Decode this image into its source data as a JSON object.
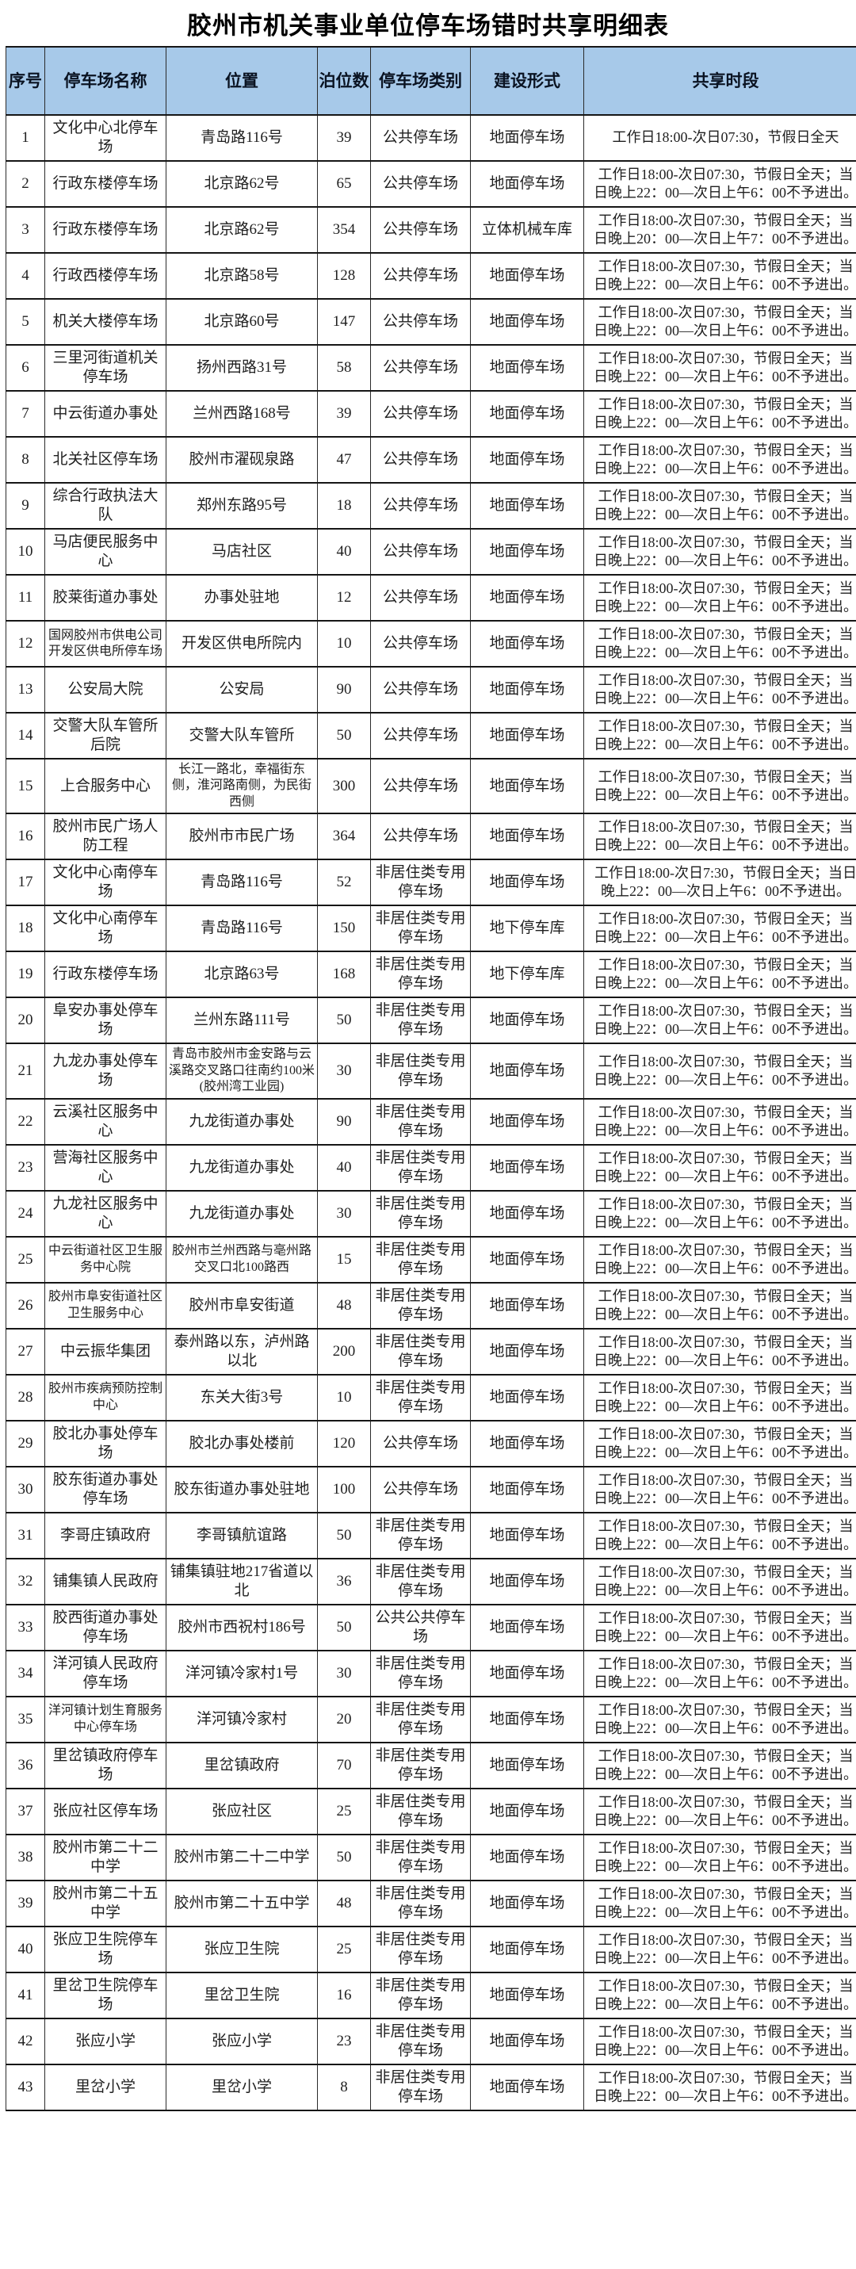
{
  "page": {
    "title": "胶州市机关事业单位停车场错时共享明细表"
  },
  "colors": {
    "header_bg": "#a7c9e9",
    "border": "#2b2b2b",
    "text": "#1f1f1f"
  },
  "table": {
    "columns": [
      "序号",
      "停车场名称",
      "位置",
      "泊位数",
      "停车场类别",
      "建设形式",
      "共享时段"
    ],
    "rows": [
      [
        "1",
        "文化中心北停车场",
        "青岛路116号",
        "39",
        "公共停车场",
        "地面停车场",
        "工作日18:00-次日07:30，节假日全天"
      ],
      [
        "2",
        "行政东楼停车场",
        "北京路62号",
        "65",
        "公共停车场",
        "地面停车场",
        "工作日18:00-次日07:30，节假日全天；当日晚上22：00—次日上午6：00不予进出。"
      ],
      [
        "3",
        "行政东楼停车场",
        "北京路62号",
        "354",
        "公共停车场",
        "立体机械车库",
        "工作日18:00-次日07:30，节假日全天；当日晚上20：00—次日上午7：00不予进出。"
      ],
      [
        "4",
        "行政西楼停车场",
        "北京路58号",
        "128",
        "公共停车场",
        "地面停车场",
        "工作日18:00-次日07:30，节假日全天；当日晚上22：00—次日上午6：00不予进出。"
      ],
      [
        "5",
        "机关大楼停车场",
        "北京路60号",
        "147",
        "公共停车场",
        "地面停车场",
        "工作日18:00-次日07:30，节假日全天；当日晚上22：00—次日上午6：00不予进出。"
      ],
      [
        "6",
        "三里河街道机关停车场",
        "扬州西路31号",
        "58",
        "公共停车场",
        "地面停车场",
        "工作日18:00-次日07:30，节假日全天；当日晚上22：00—次日上午6：00不予进出。"
      ],
      [
        "7",
        "中云街道办事处",
        "兰州西路168号",
        "39",
        "公共停车场",
        "地面停车场",
        "工作日18:00-次日07:30，节假日全天；当日晚上22：00—次日上午6：00不予进出。"
      ],
      [
        "8",
        "北关社区停车场",
        "胶州市濯砚泉路",
        "47",
        "公共停车场",
        "地面停车场",
        "工作日18:00-次日07:30，节假日全天；当日晚上22：00—次日上午6：00不予进出。"
      ],
      [
        "9",
        "综合行政执法大队",
        "郑州东路95号",
        "18",
        "公共停车场",
        "地面停车场",
        "工作日18:00-次日07:30，节假日全天；当日晚上22：00—次日上午6：00不予进出。"
      ],
      [
        "10",
        "马店便民服务中心",
        "马店社区",
        "40",
        "公共停车场",
        "地面停车场",
        "工作日18:00-次日07:30，节假日全天；当日晚上22：00—次日上午6：00不予进出。"
      ],
      [
        "11",
        "胶莱街道办事处",
        "办事处驻地",
        "12",
        "公共停车场",
        "地面停车场",
        "工作日18:00-次日07:30，节假日全天；当日晚上22：00—次日上午6：00不予进出。"
      ],
      [
        "12",
        "国网胶州市供电公司开发区供电所停车场",
        "开发区供电所院内",
        "10",
        "公共停车场",
        "地面停车场",
        "工作日18:00-次日07:30，节假日全天；当日晚上22：00—次日上午6：00不予进出。"
      ],
      [
        "13",
        "公安局大院",
        "公安局",
        "90",
        "公共停车场",
        "地面停车场",
        "工作日18:00-次日07:30，节假日全天；当日晚上22：00—次日上午6：00不予进出。"
      ],
      [
        "14",
        "交警大队车管所后院",
        "交警大队车管所",
        "50",
        "公共停车场",
        "地面停车场",
        "工作日18:00-次日07:30，节假日全天；当日晚上22：00—次日上午6：00不予进出。"
      ],
      [
        "15",
        "上合服务中心",
        "长江一路北，幸福街东侧，淮河路南侧，为民街西侧",
        "300",
        "公共停车场",
        "地面停车场",
        "工作日18:00-次日07:30，节假日全天；当日晚上22：00—次日上午6：00不予进出。"
      ],
      [
        "16",
        "胶州市民广场人防工程",
        "胶州市市民广场",
        "364",
        "公共停车场",
        "地面停车场",
        "工作日18:00-次日07:30，节假日全天；当日晚上22：00—次日上午6：00不予进出。"
      ],
      [
        "17",
        "文化中心南停车场",
        "青岛路116号",
        "52",
        "非居住类专用停车场",
        "地面停车场",
        "工作日18:00-次日7:30，节假日全天；当日晚上22：00—次日上午6：00不予进出。"
      ],
      [
        "18",
        "文化中心南停车场",
        "青岛路116号",
        "150",
        "非居住类专用停车场",
        "地下停车库",
        "工作日18:00-次日07:30，节假日全天；当日晚上22：00—次日上午6：00不予进出。"
      ],
      [
        "19",
        "行政东楼停车场",
        "北京路63号",
        "168",
        "非居住类专用停车场",
        "地下停车库",
        "工作日18:00-次日07:30，节假日全天；当日晚上22：00—次日上午6：00不予进出。"
      ],
      [
        "20",
        "阜安办事处停车场",
        "兰州东路111号",
        "50",
        "非居住类专用停车场",
        "地面停车场",
        "工作日18:00-次日07:30，节假日全天；当日晚上22：00—次日上午6：00不予进出。"
      ],
      [
        "21",
        "九龙办事处停车场",
        "青岛市胶州市金安路与云溪路交叉路口往南约100米(胶州湾工业园)",
        "30",
        "非居住类专用停车场",
        "地面停车场",
        "工作日18:00-次日07:30，节假日全天；当日晚上22：00—次日上午6：00不予进出。"
      ],
      [
        "22",
        "云溪社区服务中心",
        "九龙街道办事处",
        "90",
        "非居住类专用停车场",
        "地面停车场",
        "工作日18:00-次日07:30，节假日全天；当日晚上22：00—次日上午6：00不予进出。"
      ],
      [
        "23",
        "营海社区服务中心",
        "九龙街道办事处",
        "40",
        "非居住类专用停车场",
        "地面停车场",
        "工作日18:00-次日07:30，节假日全天；当日晚上22：00—次日上午6：00不予进出。"
      ],
      [
        "24",
        "九龙社区服务中心",
        "九龙街道办事处",
        "30",
        "非居住类专用停车场",
        "地面停车场",
        "工作日18:00-次日07:30，节假日全天；当日晚上22：00—次日上午6：00不予进出。"
      ],
      [
        "25",
        "中云街道社区卫生服务中心院",
        "胶州市兰州西路与亳州路交叉口北100路西",
        "15",
        "非居住类专用停车场",
        "地面停车场",
        "工作日18:00-次日07:30，节假日全天；当日晚上22：00—次日上午6：00不予进出。"
      ],
      [
        "26",
        "胶州市阜安街道社区卫生服务中心",
        "胶州市阜安街道",
        "48",
        "非居住类专用停车场",
        "地面停车场",
        "工作日18:00-次日07:30，节假日全天；当日晚上22：00—次日上午6：00不予进出。"
      ],
      [
        "27",
        "中云振华集团",
        "泰州路以东，泸州路以北",
        "200",
        "非居住类专用停车场",
        "地面停车场",
        "工作日18:00-次日07:30，节假日全天；当日晚上22：00—次日上午6：00不予进出。"
      ],
      [
        "28",
        "胶州市疾病预防控制中心",
        "东关大街3号",
        "10",
        "非居住类专用停车场",
        "地面停车场",
        "工作日18:00-次日07:30，节假日全天；当日晚上22：00—次日上午6：00不予进出。"
      ],
      [
        "29",
        "胶北办事处停车场",
        "胶北办事处楼前",
        "120",
        "公共停车场",
        "地面停车场",
        "工作日18:00-次日07:30，节假日全天；当日晚上22：00—次日上午6：00不予进出。"
      ],
      [
        "30",
        "胶东街道办事处停车场",
        "胶东街道办事处驻地",
        "100",
        "公共停车场",
        "地面停车场",
        "工作日18:00-次日07:30，节假日全天；当日晚上22：00—次日上午6：00不予进出。"
      ],
      [
        "31",
        "李哥庄镇政府",
        "李哥镇航谊路",
        "50",
        "非居住类专用停车场",
        "地面停车场",
        "工作日18:00-次日07:30，节假日全天；当日晚上22：00—次日上午6：00不予进出。"
      ],
      [
        "32",
        "铺集镇人民政府",
        "铺集镇驻地217省道以北",
        "36",
        "非居住类专用停车场",
        "地面停车场",
        "工作日18:00-次日07:30，节假日全天；当日晚上22：00—次日上午6：00不予进出。"
      ],
      [
        "33",
        "胶西街道办事处停车场",
        "胶州市西祝村186号",
        "50",
        "公共公共停车场",
        "地面停车场",
        "工作日18:00-次日07:30，节假日全天；当日晚上22：00—次日上午6：00不予进出。"
      ],
      [
        "34",
        "洋河镇人民政府停车场",
        "洋河镇冷家村1号",
        "30",
        "非居住类专用停车场",
        "地面停车场",
        "工作日18:00-次日07:30，节假日全天；当日晚上22：00—次日上午6：00不予进出。"
      ],
      [
        "35",
        "洋河镇计划生育服务中心停车场",
        "洋河镇冷家村",
        "20",
        "非居住类专用停车场",
        "地面停车场",
        "工作日18:00-次日07:30，节假日全天；当日晚上22：00—次日上午6：00不予进出。"
      ],
      [
        "36",
        "里岔镇政府停车场",
        "里岔镇政府",
        "70",
        "非居住类专用停车场",
        "地面停车场",
        "工作日18:00-次日07:30，节假日全天；当日晚上22：00—次日上午6：00不予进出。"
      ],
      [
        "37",
        "张应社区停车场",
        "张应社区",
        "25",
        "非居住类专用停车场",
        "地面停车场",
        "工作日18:00-次日07:30，节假日全天；当日晚上22：00—次日上午6：00不予进出。"
      ],
      [
        "38",
        "胶州市第二十二中学",
        "胶州市第二十二中学",
        "50",
        "非居住类专用停车场",
        "地面停车场",
        "工作日18:00-次日07:30，节假日全天；当日晚上22：00—次日上午6：00不予进出。"
      ],
      [
        "39",
        "胶州市第二十五中学",
        "胶州市第二十五中学",
        "48",
        "非居住类专用停车场",
        "地面停车场",
        "工作日18:00-次日07:30，节假日全天；当日晚上22：00—次日上午6：00不予进出。"
      ],
      [
        "40",
        "张应卫生院停车场",
        "张应卫生院",
        "25",
        "非居住类专用停车场",
        "地面停车场",
        "工作日18:00-次日07:30，节假日全天；当日晚上22：00—次日上午6：00不予进出。"
      ],
      [
        "41",
        "里岔卫生院停车场",
        "里岔卫生院",
        "16",
        "非居住类专用停车场",
        "地面停车场",
        "工作日18:00-次日07:30，节假日全天；当日晚上22：00—次日上午6：00不予进出。"
      ],
      [
        "42",
        "张应小学",
        "张应小学",
        "23",
        "非居住类专用停车场",
        "地面停车场",
        "工作日18:00-次日07:30，节假日全天；当日晚上22：00—次日上午6：00不予进出。"
      ],
      [
        "43",
        "里岔小学",
        "里岔小学",
        "8",
        "非居住类专用停车场",
        "地面停车场",
        "工作日18:00-次日07:30，节假日全天；当日晚上22：00—次日上午6：00不予进出。"
      ]
    ]
  }
}
